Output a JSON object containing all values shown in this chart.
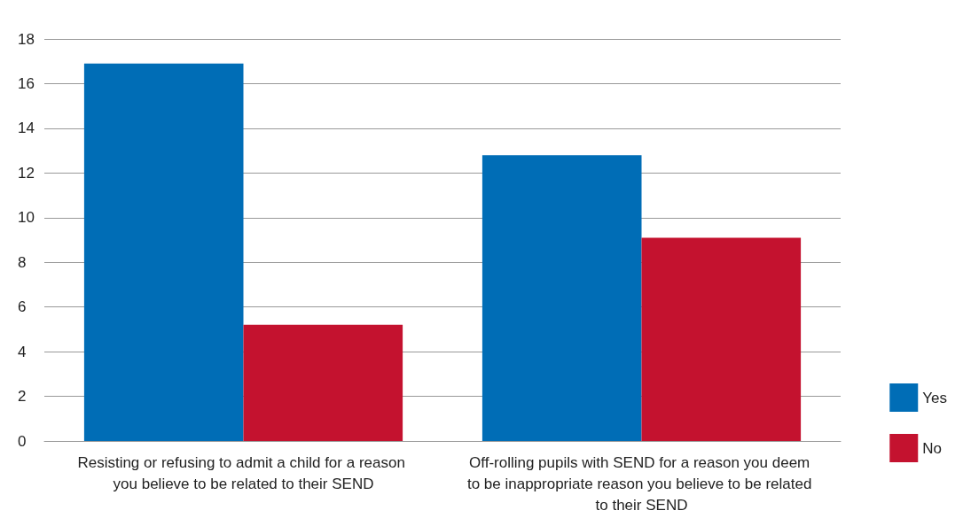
{
  "chart_data": {
    "type": "bar",
    "categories": [
      "Resisting or refusing to admit a child for a reason you believe to be related to their SEND",
      "Off-rolling pupils with SEND for a reason you deem to be inappropriate reason you believe to be related to their SEND"
    ],
    "series": [
      {
        "name": "Yes",
        "color": "#006db6",
        "values": [
          16.9,
          12.8
        ]
      },
      {
        "name": "No",
        "color": "#c4122f",
        "values": [
          5.2,
          9.1
        ]
      }
    ],
    "ylim": [
      0,
      18
    ],
    "yticks": [
      0,
      2,
      4,
      6,
      8,
      10,
      12,
      14,
      16,
      18
    ],
    "grid": "y",
    "legend": "right"
  }
}
